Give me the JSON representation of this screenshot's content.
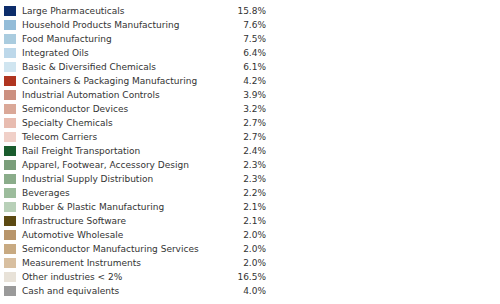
{
  "chart_data": {
    "type": "pie",
    "categories": [
      "Large Pharmaceuticals",
      "Household Products Manufacturing",
      "Food Manufacturing",
      "Integrated Oils",
      "Basic & Diversified Chemicals",
      "Containers & Packaging Manufacturing",
      "Industrial Automation Controls",
      "Semiconductor Devices",
      "Specialty Chemicals",
      "Telecom Carriers",
      "Rail Freight Transportation",
      "Apparel, Footwear, Accessory Design",
      "Industrial Supply Distribution",
      "Beverages",
      "Rubber & Plastic Manufacturing",
      "Infrastructure Software",
      "Automotive Wholesale",
      "Semiconductor Manufacturing Services",
      "Measurement Instruments",
      "Other industries < 2%",
      "Cash and equivalents"
    ],
    "values": [
      15.8,
      7.6,
      7.5,
      6.4,
      6.1,
      4.2,
      3.9,
      3.2,
      2.7,
      2.7,
      2.4,
      2.3,
      2.3,
      2.2,
      2.1,
      2.1,
      2.0,
      2.0,
      2.0,
      16.5,
      4.0
    ],
    "value_labels": [
      "15.8%",
      "7.6%",
      "7.5%",
      "6.4%",
      "6.1%",
      "4.2%",
      "3.9%",
      "3.2%",
      "2.7%",
      "2.7%",
      "2.4%",
      "2.3%",
      "2.3%",
      "2.2%",
      "2.1%",
      "2.1%",
      "2.0%",
      "2.0%",
      "2.0%",
      "16.5%",
      "4.0%"
    ],
    "colors": [
      "#0d2d6b",
      "#93bcd8",
      "#aaccdf",
      "#bdd8ea",
      "#d0e5f0",
      "#b03520",
      "#cc9080",
      "#daa898",
      "#e8bcb0",
      "#f0d0c8",
      "#1a5c2e",
      "#7a9e7a",
      "#8aac8a",
      "#9cbc9c",
      "#b8d0b8",
      "#5c4a12",
      "#b8956a",
      "#c8aa82",
      "#d8bfa0",
      "#e8e2d8",
      "#9a9a9a"
    ],
    "legend": "left"
  }
}
